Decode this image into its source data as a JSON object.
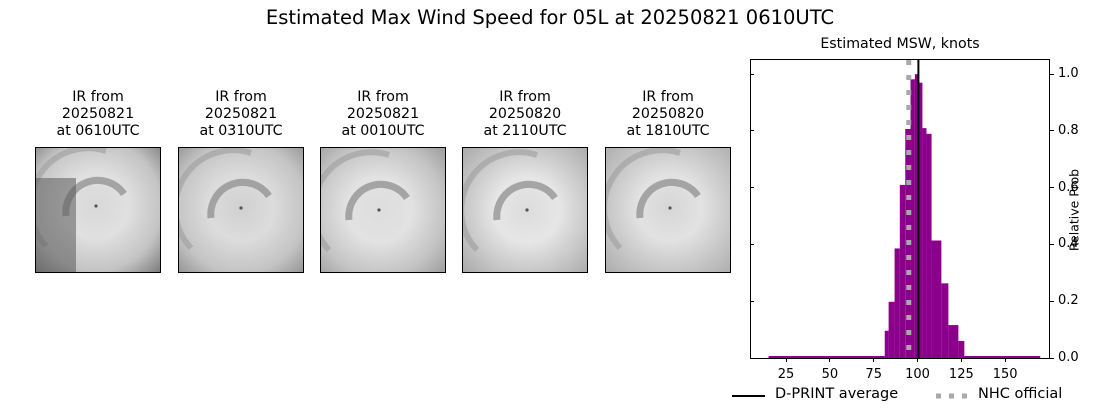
{
  "title": "Estimated Max Wind Speed for 05L at 20250821 0610UTC",
  "ir_panels": [
    {
      "line1": "IR from",
      "line2": "20250821",
      "line3": "at 0610UTC"
    },
    {
      "line1": "IR from",
      "line2": "20250821",
      "line3": "at 0310UTC"
    },
    {
      "line1": "IR from",
      "line2": "20250821",
      "line3": "at 0010UTC"
    },
    {
      "line1": "IR from",
      "line2": "20250820",
      "line3": "at 2110UTC"
    },
    {
      "line1": "IR from",
      "line2": "20250820",
      "line3": "at 1810UTC"
    }
  ],
  "colors": {
    "bar": "#8b008b",
    "dprint_line": "#000000",
    "nhc_line": "#a9a9a9"
  },
  "chart_data": {
    "type": "bar",
    "title": "Estimated MSW, knots",
    "xlabel": "",
    "ylabel": "Relative Prob",
    "xlim": [
      5,
      175
    ],
    "ylim": [
      0,
      1.05
    ],
    "xticks": [
      25,
      50,
      75,
      100,
      125,
      150
    ],
    "yticks": [
      0.0,
      0.2,
      0.4,
      0.6,
      0.8,
      1.0
    ],
    "ytick_labels": [
      "0.0",
      "0.2",
      "0.4",
      "0.6",
      "0.8",
      "1.0"
    ],
    "y_axis_position": "right",
    "grid": false,
    "bins": [
      {
        "x0": 15,
        "x1": 81.3,
        "value": 0.005
      },
      {
        "x0": 81.3,
        "x1": 83.5,
        "value": 0.096
      },
      {
        "x0": 83.5,
        "x1": 86.9,
        "value": 0.198
      },
      {
        "x0": 86.9,
        "x1": 89.9,
        "value": 0.386
      },
      {
        "x0": 89.9,
        "x1": 93.0,
        "value": 0.61
      },
      {
        "x0": 93.0,
        "x1": 96.0,
        "value": 0.807
      },
      {
        "x0": 96.0,
        "x1": 98.5,
        "value": 0.982
      },
      {
        "x0": 98.5,
        "x1": 100.6,
        "value": 1.0
      },
      {
        "x0": 100.6,
        "x1": 102.8,
        "value": 0.97
      },
      {
        "x0": 102.8,
        "x1": 105.1,
        "value": 0.81
      },
      {
        "x0": 105.1,
        "x1": 108.0,
        "value": 0.79
      },
      {
        "x0": 108.0,
        "x1": 113.6,
        "value": 0.414
      },
      {
        "x0": 113.6,
        "x1": 117.6,
        "value": 0.263
      },
      {
        "x0": 117.6,
        "x1": 123.3,
        "value": 0.116
      },
      {
        "x0": 123.3,
        "x1": 126.7,
        "value": 0.06
      },
      {
        "x0": 126.7,
        "x1": 170,
        "value": 0.005
      }
    ],
    "vlines": [
      {
        "name": "D-PRINT average",
        "x": 100.5,
        "style": "solid",
        "color": "#000000"
      },
      {
        "name": "NHC official",
        "x": 95,
        "style": "dotted",
        "color": "#a9a9a9"
      }
    ],
    "legend": {
      "position": "bottom",
      "entries": [
        "D-PRINT average",
        "NHC official"
      ]
    }
  }
}
